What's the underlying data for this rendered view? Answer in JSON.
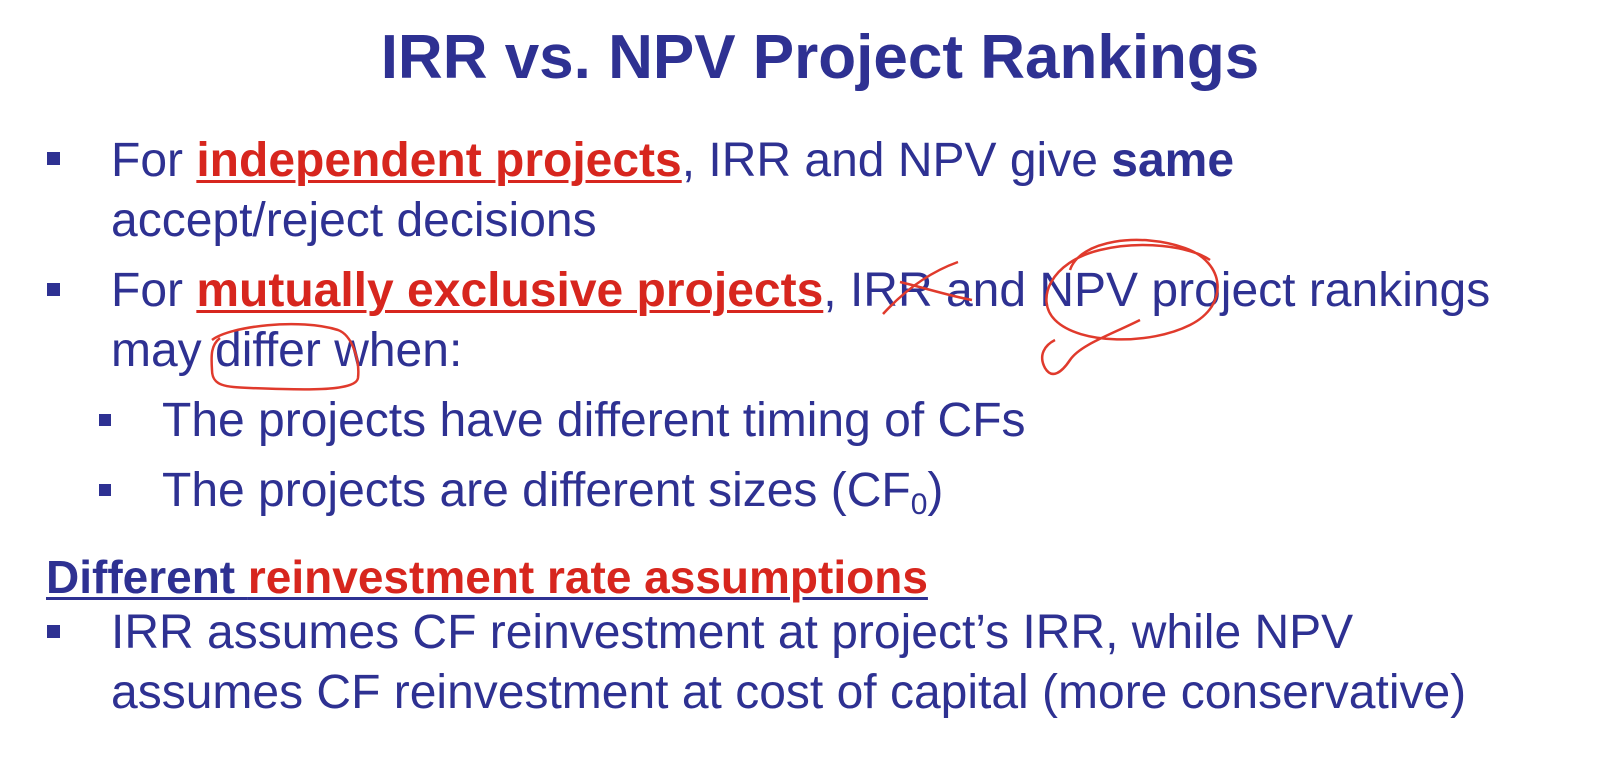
{
  "slide": {
    "title": "IRR vs. NPV Project Rankings",
    "bullet1": {
      "prefix": "For ",
      "highlight": "independent projects",
      "middle": ", IRR and NPV give ",
      "bold": "same",
      "line2": "accept/reject decisions"
    },
    "bullet2": {
      "prefix": "For ",
      "highlight": "mutually exclusive projects",
      "middle": ", IRR and NPV project rankings",
      "line2": "may differ when:"
    },
    "sub_bullets": [
      "The projects have different timing of CFs",
      "The projects are different sizes (CF"
    ],
    "sub_bullet2_subscript": "0",
    "sub_bullet2_suffix": ")",
    "heading": {
      "part1": "Different ",
      "part2": "reinvestment rate assumptions"
    },
    "bullet3": {
      "line1": "IRR assumes CF reinvestment at project’s IRR, while NPV",
      "line2": "assumes CF reinvestment at cost of capital (more conservative)"
    }
  },
  "colors": {
    "navy": "#2e3192",
    "red": "#d7261e",
    "annotation": "#e03a2c"
  }
}
